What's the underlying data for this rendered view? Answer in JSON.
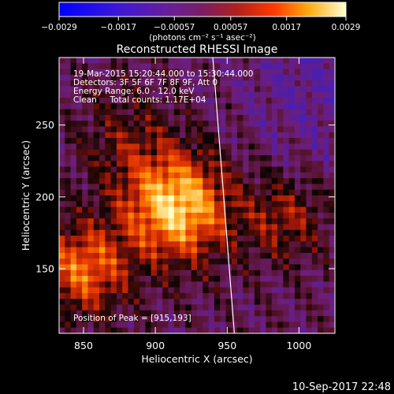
{
  "colorbar": {
    "tick_labels": [
      "−0.0029",
      "−0.0017",
      "−0.00057",
      "0.00057",
      "0.0017",
      "0.0029"
    ],
    "unit_label": "(photons cm⁻² s⁻¹ asec⁻²)",
    "range": [
      -0.0029,
      0.0029
    ]
  },
  "chart_data": {
    "type": "heatmap",
    "title": "Reconstructed RHESSI Image",
    "xlabel": "Heliocentric X (arcsec)",
    "ylabel": "Heliocentric Y (arcsec)",
    "xlim": [
      833,
      1025
    ],
    "ylim": [
      105,
      297
    ],
    "x_ticks": [
      850,
      900,
      950,
      1000
    ],
    "y_ticks": [
      150,
      200,
      250
    ],
    "x_tick_labels": [
      "850",
      "900",
      "950",
      "1000"
    ],
    "y_tick_labels": [
      "150",
      "200",
      "250"
    ],
    "peak": [
      915,
      193
    ],
    "annotations": {
      "time": "19-Mar-2015 15:20:44.000 to 15:30:44.000",
      "detectors": "Detectors: 3F 5F 6F 7F 8F 9F, Att 0",
      "energy": "Energy Range: 6.0 - 12.0 keV",
      "method": "Clean     Total counts: 1.17E+04",
      "peak_label": "Position of Peak = [915,193]"
    },
    "limb_line": [
      [
        940,
        297
      ],
      [
        955,
        105
      ]
    ]
  },
  "footer": {
    "date": "10-Sep-2017 22:48"
  }
}
